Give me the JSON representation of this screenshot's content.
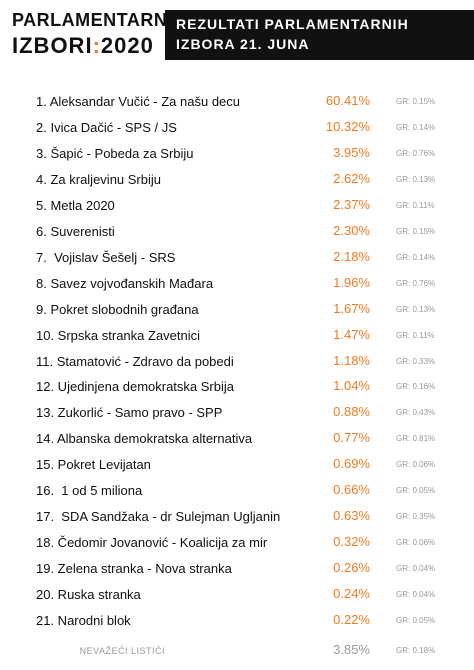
{
  "header": {
    "logo_line1": "PARLAMENTARNI",
    "logo_word": "IZBORI",
    "logo_colon": ":",
    "logo_year": "2020",
    "title_line1": "REZULTATI PARLAMENTARNIH",
    "title_line2": "IZBORA 21. JUNA"
  },
  "table": {
    "rows": [
      [
        "1. Aleksandar Vučić - Za našu decu",
        "60.41%",
        "GR: 0.15%"
      ],
      [
        "2. Ivica Dačić - SPS / JS",
        "10.32%",
        "GR: 0.14%"
      ],
      [
        "3. Šapić - Pobeda za Srbiju",
        "3.95%",
        "GR: 0.76%"
      ],
      [
        "4. Za kraljevinu Srbiju",
        "2.62%",
        "GR: 0.13%"
      ],
      [
        "5. Metla 2020",
        "2.37%",
        "GR: 0.11%"
      ],
      [
        "6. Suverenisti",
        "2.30%",
        "GR: 0.15%"
      ],
      [
        "7.  Vojislav Šešelj - SRS",
        "2.18%",
        "GR: 0.14%"
      ],
      [
        "8. Savez vojvođanskih Mađara",
        "1.96%",
        "GR: 0.76%"
      ],
      [
        "9. Pokret slobodnih građana",
        "1.67%",
        "GR: 0.13%"
      ],
      [
        "10. Srpska stranka Zavetnici",
        "1.47%",
        "GR: 0.11%"
      ],
      [
        "11. Stamatović - Zdravo da pobedi",
        "1.18%",
        "GR: 0.33%"
      ],
      [
        "12. Ujedinjena demokratska Srbija",
        "1.04%",
        "GR: 0.16%"
      ],
      [
        "13. Zukorlić - Samo pravo - SPP",
        "0.88%",
        "GR: 0.43%"
      ],
      [
        "14. Albanska demokratska alternativa",
        "0.77%",
        "GR: 0.81%"
      ],
      [
        "15. Pokret Levijatan",
        "0.69%",
        "GR: 0.06%"
      ],
      [
        "16.  1 od 5 miliona",
        "0.66%",
        "GR: 0.05%"
      ],
      [
        "17.  SDA Sandžaka - dr Sulejman Ugljanin",
        "0.63%",
        "GR: 0.35%"
      ],
      [
        "18. Čedomir Jovanović - Koalicija za mir",
        "0.32%",
        "GR: 0.06%"
      ],
      [
        "19. Zelena stranka - Nova stranka",
        "0.26%",
        "GR: 0.04%"
      ],
      [
        "20. Ruska stranka",
        "0.24%",
        "GR: 0.04%"
      ],
      [
        "21. Narodni blok",
        "0.22%",
        "GR: 0.05%"
      ]
    ],
    "footer": [
      "NEVAŽEĆI LISTIĆI",
      "3.85%",
      "GR: 0.18%"
    ]
  }
}
